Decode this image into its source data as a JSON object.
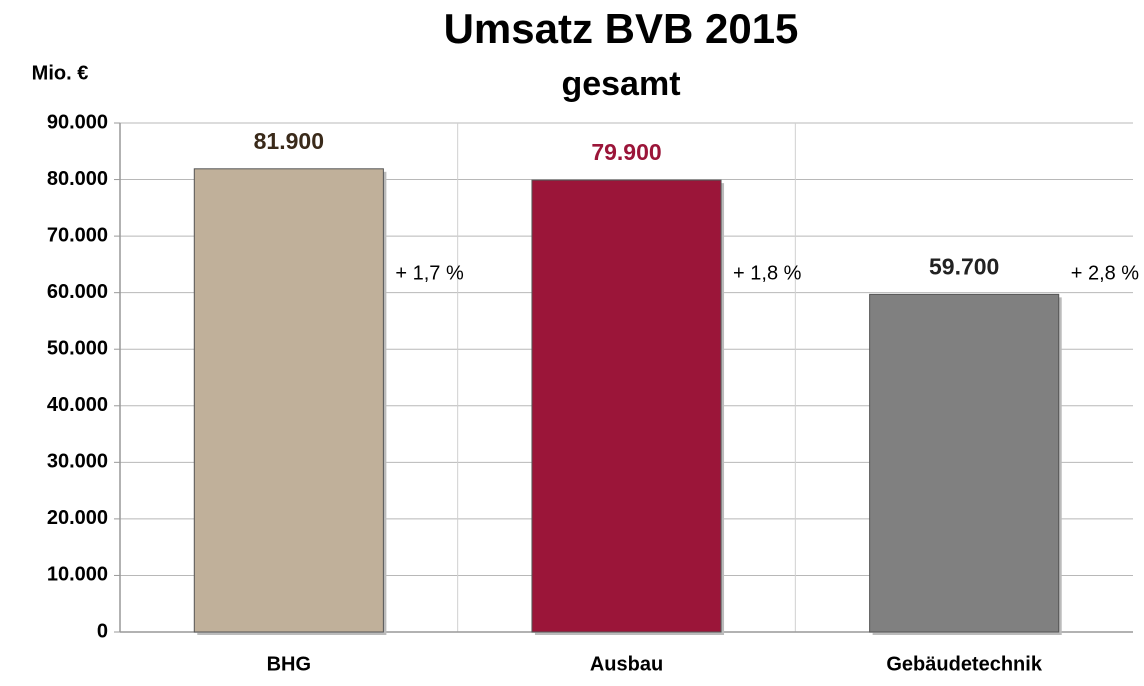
{
  "chart_data": {
    "type": "bar",
    "title": "Umsatz BVB 2015",
    "subtitle": "gesamt",
    "y_label": "Mio. €",
    "categories": [
      "BHG",
      "Ausbau",
      "Gebäudetechnik"
    ],
    "values": [
      81900,
      79900,
      59700
    ],
    "value_labels": [
      "81.900",
      "79.900",
      "59.700"
    ],
    "value_label_colors": [
      "#3a2a1a",
      "#9b1539",
      "#222222"
    ],
    "annotations": [
      "+ 1,7 %",
      "+ 1,8 %",
      "+ 2,8 %"
    ],
    "colors": [
      "#c0b09a",
      "#9b1539",
      "#808080"
    ],
    "ylim": [
      0,
      90000
    ],
    "yticks": [
      0,
      {
        "value": 10000,
        "label": "10.000"
      },
      {
        "value": 20000,
        "label": "20.000"
      },
      {
        "value": 30000,
        "label": "30.000"
      },
      {
        "value": 40000,
        "label": "40.000"
      },
      {
        "value": 50000,
        "label": "50.000"
      },
      {
        "value": 60000,
        "label": "60.000"
      },
      {
        "value": 70000,
        "label": "70.000"
      },
      {
        "value": 80000,
        "label": "80.000"
      },
      {
        "value": 90000,
        "label": "90.000"
      }
    ],
    "grid": true
  }
}
